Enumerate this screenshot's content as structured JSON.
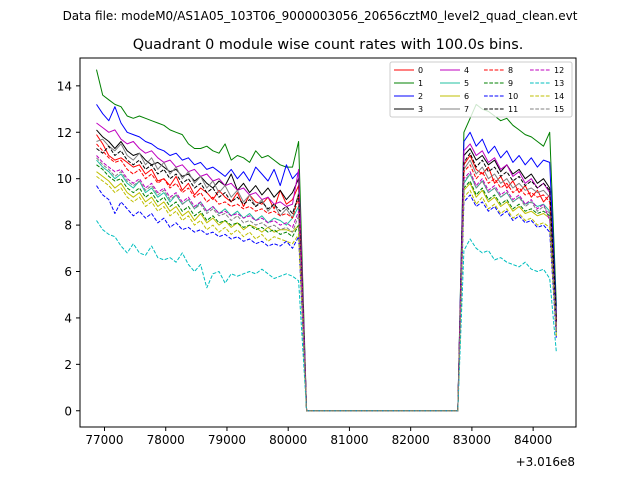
{
  "chart_data": {
    "type": "line",
    "suptitle": "Data file: modeM0/AS1A05_103T06_9000003056_20656cztM0_level2_quad_clean.evt",
    "title": "Quadrant 0 module wise count rates with 100.0s bins.",
    "xlabel": "",
    "ylabel": "",
    "x_offset_label": "+3.016e8",
    "xlim": [
      76600,
      84700
    ],
    "ylim": [
      -0.7,
      15.2
    ],
    "xticks": [
      77000,
      78000,
      79000,
      80000,
      81000,
      82000,
      83000,
      84000
    ],
    "yticks": [
      0,
      2,
      4,
      6,
      8,
      10,
      12,
      14
    ],
    "xtick_labels": [
      "77000",
      "78000",
      "79000",
      "80000",
      "81000",
      "82000",
      "83000",
      "84000"
    ],
    "ytick_labels": [
      "0",
      "2",
      "4",
      "6",
      "8",
      "10",
      "12",
      "14"
    ],
    "legend_position": "upper-right",
    "segments": {
      "seg1": {
        "start": 76870,
        "step": 100,
        "count": 34
      },
      "gap": [
        80300,
        80330,
        82770
      ],
      "seg2": {
        "start": 82870,
        "step": 100,
        "count": 15
      },
      "end": 84380
    },
    "series": [
      {
        "name": "0",
        "color": "#ff0000",
        "dash": "solid",
        "seg1": [
          11.9,
          11.5,
          11.0,
          10.8,
          10.9,
          10.7,
          10.5,
          10.6,
          10.2,
          10.4,
          9.9,
          10.0,
          9.7,
          10.1,
          9.5,
          9.8,
          9.3,
          9.6,
          9.4,
          9.1,
          9.5,
          9.2,
          9.0,
          9.4,
          8.8,
          9.3,
          9.0,
          8.9,
          9.2,
          8.7,
          9.5,
          8.9,
          9.1,
          9.7
        ],
        "seg2": [
          10.6,
          11.0,
          10.4,
          10.2,
          10.5,
          9.8,
          10.1,
          9.6,
          9.9,
          9.4,
          9.7,
          9.2,
          9.5,
          9.0,
          9.3
        ],
        "end_value": 3.9
      },
      {
        "name": "1",
        "color": "#008000",
        "dash": "solid",
        "seg1": [
          14.7,
          13.6,
          13.4,
          13.2,
          13.1,
          12.7,
          12.6,
          12.7,
          12.6,
          12.5,
          12.4,
          12.3,
          12.1,
          12.0,
          11.9,
          11.5,
          11.3,
          11.3,
          11.4,
          11.2,
          11.1,
          11.5,
          10.8,
          11.0,
          10.9,
          10.7,
          11.2,
          10.9,
          11.0,
          10.8,
          10.6,
          10.5,
          10.5,
          11.6
        ],
        "seg2": [
          12.0,
          12.6,
          13.2,
          13.0,
          12.9,
          12.7,
          12.5,
          12.6,
          12.3,
          12.1,
          11.9,
          11.8,
          11.6,
          11.4,
          12.0
        ],
        "end_value": 4.5
      },
      {
        "name": "2",
        "color": "#0000ff",
        "dash": "solid",
        "seg1": [
          13.2,
          12.8,
          12.5,
          13.1,
          12.4,
          12.0,
          11.9,
          11.8,
          11.6,
          11.5,
          11.3,
          11.2,
          11.0,
          11.1,
          10.8,
          10.9,
          10.6,
          10.7,
          10.4,
          10.5,
          10.3,
          10.1,
          10.4,
          10.0,
          10.3,
          9.9,
          10.5,
          10.2,
          9.9,
          10.4,
          9.7,
          10.6,
          10.0,
          10.3
        ],
        "seg2": [
          11.6,
          12.0,
          11.4,
          11.7,
          11.1,
          11.4,
          10.9,
          11.2,
          10.7,
          11.0,
          10.6,
          10.9,
          10.5,
          10.8,
          10.7
        ],
        "end_value": 4.2
      },
      {
        "name": "3",
        "color": "#000000",
        "dash": "solid",
        "seg1": [
          12.1,
          11.8,
          11.6,
          11.3,
          11.6,
          11.2,
          11.0,
          11.1,
          10.8,
          10.6,
          10.7,
          10.5,
          10.3,
          10.4,
          10.1,
          10.2,
          9.9,
          10.1,
          9.8,
          9.6,
          9.9,
          9.7,
          10.2,
          9.5,
          9.8,
          9.4,
          9.7,
          9.3,
          9.6,
          9.2,
          9.5,
          9.1,
          9.4,
          10.0
        ],
        "seg2": [
          11.0,
          11.3,
          10.8,
          11.0,
          10.6,
          10.8,
          10.3,
          10.6,
          10.2,
          10.4,
          10.0,
          10.2,
          9.8,
          10.0,
          9.6
        ],
        "end_value": 4.0
      },
      {
        "name": "4",
        "color": "#bf00bf",
        "dash": "solid",
        "seg1": [
          12.4,
          12.2,
          12.0,
          12.1,
          11.7,
          11.5,
          11.6,
          11.3,
          11.1,
          11.2,
          10.9,
          10.7,
          10.8,
          10.5,
          10.6,
          10.3,
          10.4,
          10.1,
          10.2,
          9.9,
          10.0,
          9.7,
          9.8,
          9.5,
          9.6,
          9.3,
          9.4,
          9.1,
          9.2,
          8.9,
          9.0,
          8.8,
          8.9,
          10.4
        ],
        "seg2": [
          11.2,
          11.5,
          11.0,
          11.2,
          10.7,
          10.9,
          10.4,
          10.6,
          10.1,
          10.3,
          9.8,
          10.0,
          9.6,
          9.8,
          9.4
        ],
        "end_value": 3.8
      },
      {
        "name": "5",
        "color": "#20c0a0",
        "dash": "solid",
        "seg1": [
          10.8,
          10.5,
          10.3,
          10.0,
          10.2,
          9.8,
          9.6,
          9.9,
          9.4,
          9.6,
          9.2,
          9.4,
          9.0,
          9.3,
          8.9,
          9.1,
          8.7,
          9.0,
          8.6,
          8.8,
          8.5,
          8.7,
          8.4,
          8.6,
          8.3,
          8.5,
          8.2,
          8.4,
          8.1,
          8.3,
          8.2,
          8.0,
          8.3,
          8.8
        ],
        "seg2": [
          9.8,
          10.2,
          9.6,
          9.9,
          9.4,
          9.6,
          9.2,
          9.4,
          9.0,
          9.2,
          8.9,
          9.0,
          8.8,
          8.9,
          8.6
        ],
        "end_value": 3.5
      },
      {
        "name": "6",
        "color": "#bfbf00",
        "dash": "solid",
        "seg1": [
          10.3,
          10.1,
          9.9,
          9.6,
          9.8,
          9.4,
          9.2,
          9.4,
          9.0,
          9.2,
          8.8,
          9.0,
          8.6,
          8.8,
          8.4,
          8.6,
          8.2,
          8.5,
          8.1,
          8.3,
          8.0,
          8.2,
          7.9,
          8.1,
          7.8,
          8.0,
          7.9,
          7.7,
          7.9,
          7.7,
          7.8,
          7.8,
          7.7,
          8.0
        ],
        "seg2": [
          9.5,
          9.8,
          9.2,
          9.5,
          9.0,
          9.2,
          8.8,
          9.0,
          8.6,
          8.8,
          8.5,
          8.6,
          8.4,
          8.5,
          8.3
        ],
        "end_value": 3.4
      },
      {
        "name": "7",
        "color": "#808080",
        "dash": "solid",
        "seg1": [
          11.6,
          11.7,
          11.4,
          11.2,
          11.5,
          11.0,
          10.8,
          11.1,
          10.6,
          10.9,
          10.4,
          10.7,
          10.2,
          10.5,
          10.0,
          10.3,
          9.8,
          10.1,
          9.6,
          9.9,
          9.4,
          9.7,
          9.2,
          9.5,
          9.0,
          9.3,
          8.8,
          9.1,
          8.6,
          8.9,
          8.4,
          8.7,
          8.3,
          9.4
        ],
        "seg2": [
          10.4,
          10.8,
          10.2,
          10.5,
          10.0,
          10.2,
          9.8,
          10.0,
          9.6,
          9.8,
          9.5,
          9.6,
          9.4,
          9.5,
          9.2
        ],
        "end_value": 3.7
      },
      {
        "name": "8",
        "color": "#ff0000",
        "dash": "dashed",
        "seg1": [
          11.5,
          11.2,
          10.9,
          10.7,
          10.8,
          10.4,
          10.2,
          10.4,
          10.0,
          10.2,
          9.8,
          10.0,
          9.6,
          9.8,
          9.4,
          9.6,
          9.2,
          9.4,
          9.0,
          9.2,
          8.9,
          9.0,
          8.8,
          8.9,
          8.7,
          8.8,
          8.6,
          8.7,
          8.5,
          8.6,
          8.4,
          8.5,
          8.3,
          9.2
        ],
        "seg2": [
          10.3,
          10.6,
          10.0,
          10.3,
          9.8,
          10.0,
          9.6,
          9.8,
          9.4,
          9.6,
          9.3,
          9.4,
          9.2,
          9.3,
          9.0
        ],
        "end_value": 3.6
      },
      {
        "name": "9",
        "color": "#008000",
        "dash": "dashed",
        "seg1": [
          10.6,
          10.4,
          10.1,
          9.9,
          10.0,
          9.6,
          9.4,
          9.6,
          9.2,
          9.4,
          9.0,
          9.2,
          8.8,
          9.0,
          8.6,
          8.8,
          8.4,
          8.6,
          8.2,
          8.4,
          8.1,
          8.2,
          8.0,
          8.1,
          7.9,
          8.0,
          7.8,
          7.9,
          7.7,
          7.8,
          7.6,
          7.7,
          7.5,
          8.0
        ],
        "seg2": [
          9.6,
          9.9,
          9.3,
          9.6,
          9.1,
          9.3,
          8.9,
          9.1,
          8.7,
          8.9,
          8.6,
          8.7,
          8.5,
          8.6,
          8.4
        ],
        "end_value": 3.3
      },
      {
        "name": "10",
        "color": "#0000ff",
        "dash": "dashed",
        "seg1": [
          9.7,
          9.3,
          9.1,
          8.5,
          9.0,
          8.7,
          8.4,
          8.6,
          8.3,
          8.5,
          8.1,
          8.3,
          7.9,
          8.1,
          7.8,
          7.9,
          7.7,
          7.8,
          7.6,
          7.7,
          7.5,
          7.6,
          7.4,
          7.5,
          7.3,
          7.4,
          7.2,
          7.3,
          7.1,
          7.2,
          7.1,
          7.3,
          7.0,
          7.5
        ],
        "seg2": [
          9.0,
          9.3,
          8.8,
          9.0,
          8.6,
          8.8,
          8.4,
          8.6,
          8.2,
          8.4,
          8.1,
          8.2,
          7.9,
          8.0,
          7.7
        ],
        "end_value": 3.1
      },
      {
        "name": "11",
        "color": "#000000",
        "dash": "dashed",
        "seg1": [
          11.3,
          11.1,
          11.4,
          11.0,
          11.2,
          10.8,
          10.6,
          10.8,
          10.4,
          10.6,
          10.2,
          10.4,
          10.0,
          10.2,
          9.8,
          10.0,
          9.6,
          9.8,
          9.4,
          9.6,
          9.2,
          9.4,
          9.0,
          9.2,
          8.9,
          9.1,
          8.8,
          9.0,
          8.7,
          8.9,
          8.6,
          8.8,
          8.5,
          9.3
        ],
        "seg2": [
          10.7,
          11.1,
          10.5,
          10.8,
          10.3,
          10.5,
          10.1,
          10.3,
          9.9,
          10.1,
          9.7,
          9.9,
          9.6,
          9.8,
          9.5
        ],
        "end_value": 3.8
      },
      {
        "name": "12",
        "color": "#bf00bf",
        "dash": "dashed",
        "seg1": [
          11.0,
          10.7,
          10.5,
          10.3,
          10.4,
          10.0,
          9.8,
          10.0,
          9.6,
          9.8,
          9.4,
          9.6,
          9.2,
          9.4,
          9.0,
          9.2,
          8.8,
          9.0,
          8.6,
          8.8,
          8.5,
          8.6,
          8.4,
          8.5,
          8.3,
          8.4,
          8.2,
          8.3,
          8.1,
          8.2,
          8.0,
          8.1,
          7.9,
          8.6
        ],
        "seg2": [
          10.0,
          10.3,
          9.7,
          10.0,
          9.5,
          9.7,
          9.3,
          9.5,
          9.1,
          9.3,
          8.9,
          9.1,
          8.7,
          8.9,
          8.2
        ],
        "end_value": 3.5
      },
      {
        "name": "13",
        "color": "#00bfbf",
        "dash": "dashed",
        "seg1": [
          8.2,
          7.8,
          7.6,
          7.5,
          7.1,
          6.8,
          7.2,
          6.8,
          6.7,
          7.1,
          6.6,
          6.5,
          6.6,
          6.4,
          6.8,
          6.3,
          6.0,
          6.3,
          5.3,
          5.9,
          6.0,
          5.5,
          5.9,
          5.8,
          5.9,
          6.0,
          5.9,
          6.1,
          5.9,
          5.7,
          5.8,
          5.9,
          5.8,
          5.6
        ],
        "seg2": [
          6.9,
          7.4,
          7.0,
          6.8,
          6.9,
          6.5,
          6.6,
          6.4,
          6.3,
          6.2,
          6.4,
          6.1,
          6.0,
          6.1,
          5.7
        ],
        "end_value": 2.5
      },
      {
        "name": "14",
        "color": "#bfbf00",
        "dash": "dashed",
        "seg1": [
          10.1,
          9.9,
          9.7,
          9.4,
          9.6,
          9.2,
          9.0,
          9.2,
          8.8,
          9.0,
          8.6,
          8.8,
          8.4,
          8.6,
          8.2,
          8.4,
          8.0,
          8.2,
          7.8,
          8.0,
          7.7,
          7.9,
          7.6,
          7.8,
          7.5,
          7.7,
          7.4,
          7.6,
          7.3,
          7.5,
          7.4,
          7.3,
          7.2,
          7.6
        ],
        "seg2": [
          9.2,
          9.5,
          8.9,
          9.2,
          8.7,
          8.9,
          8.5,
          8.7,
          8.3,
          8.5,
          8.2,
          8.3,
          8.0,
          8.1,
          7.9
        ],
        "end_value": 3.2
      },
      {
        "name": "15",
        "color": "#808080",
        "dash": "dashed",
        "seg1": [
          10.9,
          10.6,
          10.4,
          10.1,
          10.3,
          9.9,
          9.7,
          9.9,
          9.5,
          9.7,
          9.3,
          9.5,
          9.1,
          9.3,
          8.9,
          9.1,
          8.7,
          8.9,
          8.5,
          8.7,
          8.4,
          8.5,
          8.2,
          8.4,
          8.1,
          8.2,
          8.0,
          8.1,
          7.9,
          8.0,
          7.8,
          7.9,
          7.7,
          8.4
        ],
        "seg2": [
          9.9,
          10.2,
          9.6,
          9.9,
          9.4,
          9.6,
          9.2,
          9.4,
          9.0,
          9.2,
          8.8,
          9.0,
          8.6,
          8.8,
          8.5
        ],
        "end_value": 3.4
      }
    ]
  }
}
